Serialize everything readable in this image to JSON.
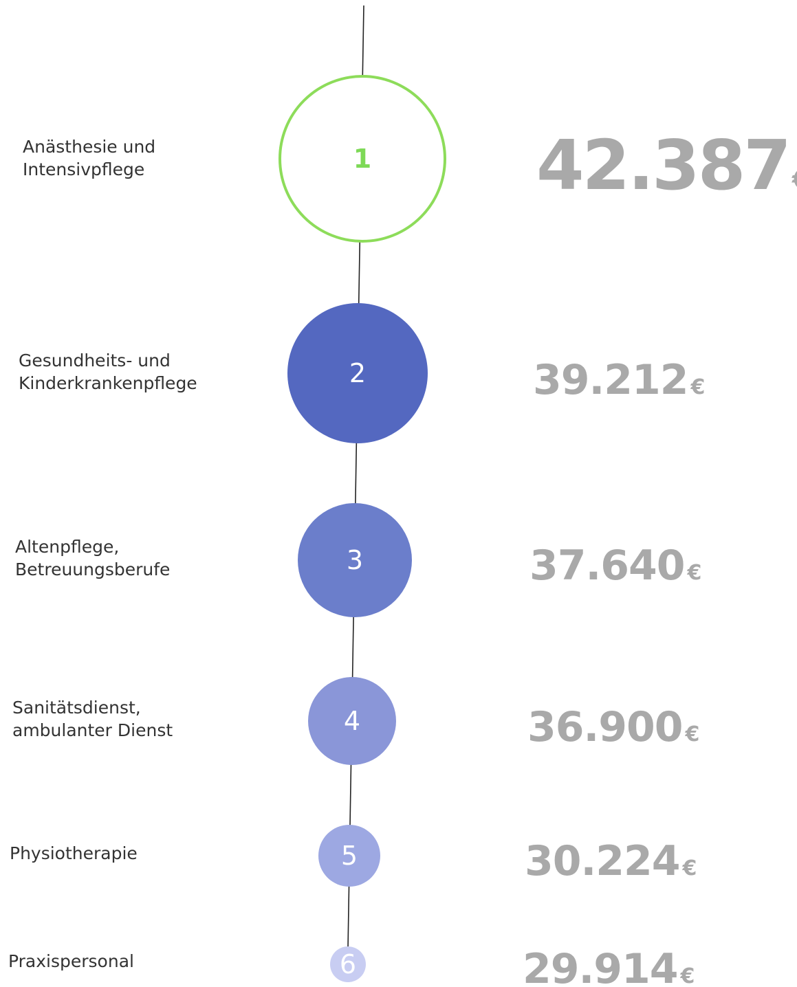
{
  "currency": "€",
  "items": [
    {
      "rank": "1",
      "label_lines": [
        "Anästhesie und",
        "Intensivpflege"
      ],
      "amount": "42.387"
    },
    {
      "rank": "2",
      "label_lines": [
        "Gesundheits- und",
        "Kinderkrankenpflege"
      ],
      "amount": "39.212"
    },
    {
      "rank": "3",
      "label_lines": [
        "Altenpflege,",
        "Betreuungsberufe"
      ],
      "amount": "37.640"
    },
    {
      "rank": "4",
      "label_lines": [
        "Sanitätsdienst,",
        "ambulanter Dienst"
      ],
      "amount": "36.900"
    },
    {
      "rank": "5",
      "label_lines": [
        "Physiotherapie"
      ],
      "amount": "30.224"
    },
    {
      "rank": "6",
      "label_lines": [
        "Praxispersonal"
      ],
      "amount": "29.914"
    }
  ]
}
